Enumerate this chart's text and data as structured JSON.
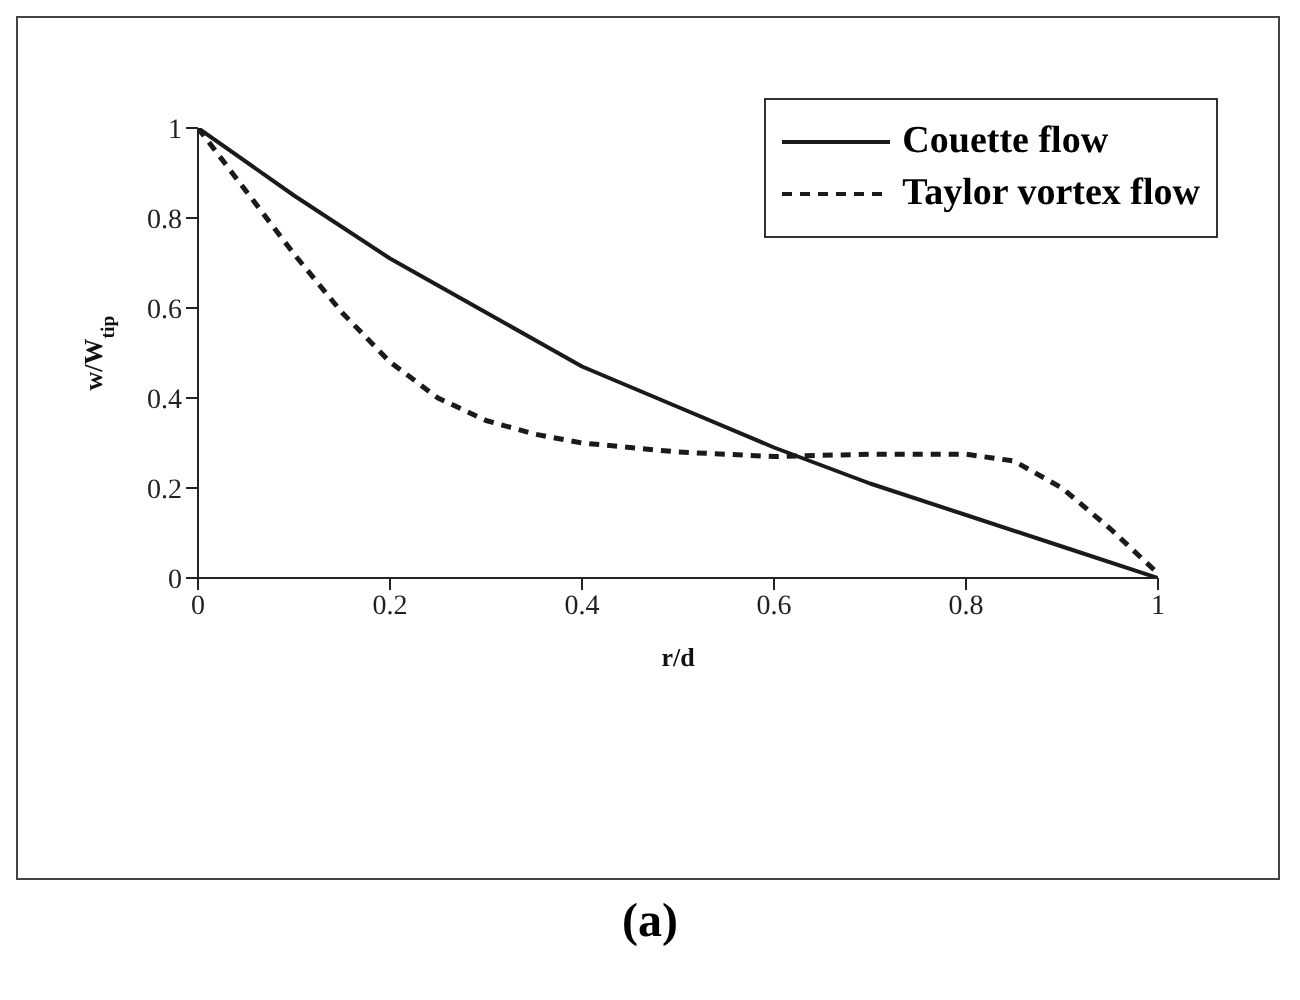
{
  "chart_data": {
    "type": "line",
    "xlabel": "r/d",
    "ylabel": "w/W$_{tip}$",
    "annotations": [
      "(a)"
    ],
    "xlim": [
      0,
      1
    ],
    "xticks": [
      0,
      0.2,
      0.4,
      0.6,
      0.8,
      1
    ],
    "ylim": [
      0,
      1
    ],
    "yticks": [
      0,
      0.2,
      0.4,
      0.6,
      0.8,
      1
    ],
    "grid": false,
    "legend": "top right",
    "marker": "none",
    "series": [
      {
        "name": "Couette flow",
        "color": "#1a1a1a",
        "line_style": "solid",
        "x": [
          0,
          0.1,
          0.2,
          0.3,
          0.4,
          0.5,
          0.6,
          0.7,
          0.8,
          0.9,
          1
        ],
        "values": [
          1,
          0.85,
          0.71,
          0.59,
          0.47,
          0.38,
          0.29,
          0.21,
          0.14,
          0.07,
          0
        ]
      },
      {
        "name": "Taylor vortex flow",
        "color": "#1a1a1a",
        "line_style": "dashed",
        "x": [
          0,
          0.05,
          0.1,
          0.15,
          0.2,
          0.25,
          0.3,
          0.35,
          0.4,
          0.5,
          0.6,
          0.7,
          0.8,
          0.85,
          0.9,
          0.95,
          1
        ],
        "values": [
          1,
          0.86,
          0.72,
          0.59,
          0.48,
          0.4,
          0.35,
          0.32,
          0.3,
          0.28,
          0.27,
          0.275,
          0.275,
          0.26,
          0.2,
          0.11,
          0.01
        ]
      }
    ]
  }
}
